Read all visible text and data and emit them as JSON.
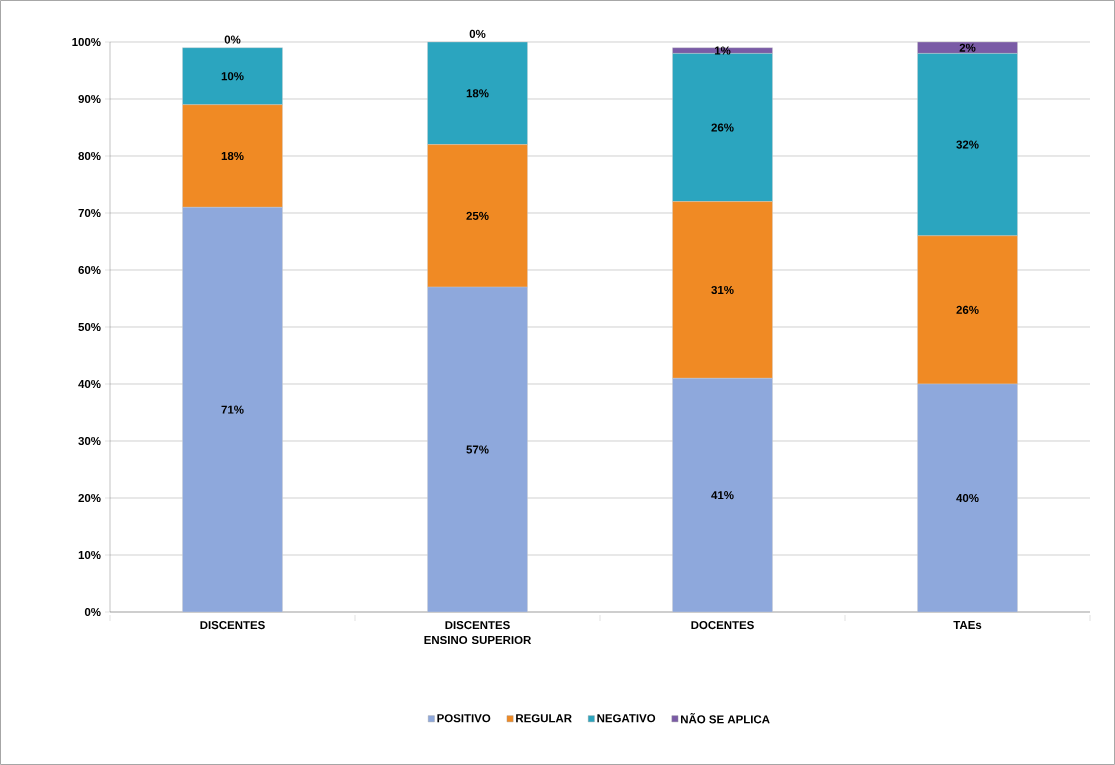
{
  "chart_data": {
    "type": "bar",
    "stacked": true,
    "categories": [
      "DISCENTES",
      "DISCENTES ENSINO SUPERIOR",
      "DOCENTES",
      "TAEs"
    ],
    "series": [
      {
        "name": "POSITIVO",
        "color": "#8ea8dc",
        "values": [
          71,
          57,
          41,
          40
        ],
        "value_labels": [
          "71%",
          "57%",
          "41%",
          "40%"
        ]
      },
      {
        "name": "REGULAR",
        "color": "#f08a24",
        "values": [
          18,
          25,
          31,
          26
        ],
        "value_labels": [
          "18%",
          "25%",
          "31%",
          "26%"
        ]
      },
      {
        "name": "NEGATIVO",
        "color": "#2ba5bf",
        "values": [
          10,
          18,
          26,
          32
        ],
        "value_labels": [
          "10%",
          "18%",
          "26%",
          "32%"
        ]
      },
      {
        "name": "NÃO SE APLICA",
        "color": "#7a5ba6",
        "values": [
          0,
          0,
          1,
          2
        ],
        "value_labels": [
          "0%",
          "0%",
          "1%",
          "2%"
        ]
      }
    ],
    "ylim": [
      0,
      100
    ],
    "yticks": [
      {
        "value": 0,
        "label": "0%"
      },
      {
        "value": 10,
        "label": "10%"
      },
      {
        "value": 20,
        "label": "20%"
      },
      {
        "value": 30,
        "label": "30%"
      },
      {
        "value": 40,
        "label": "40%"
      },
      {
        "value": 50,
        "label": "50%"
      },
      {
        "value": 60,
        "label": "60%"
      },
      {
        "value": 70,
        "label": "70%"
      },
      {
        "value": 80,
        "label": "80%"
      },
      {
        "value": 90,
        "label": "90%"
      },
      {
        "value": 100,
        "label": "100%"
      }
    ],
    "grid": "y",
    "legend": "bottom"
  }
}
